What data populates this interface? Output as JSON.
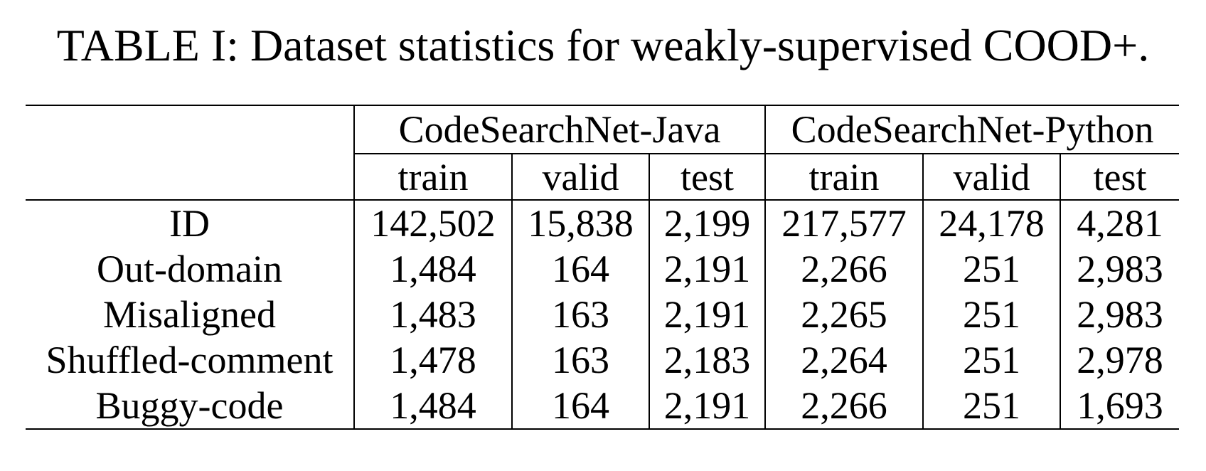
{
  "caption": "TABLE I: Dataset statistics for weakly-supervised COOD+.",
  "table": {
    "groups": [
      "CodeSearchNet-Java",
      "CodeSearchNet-Python"
    ],
    "splits": [
      "train",
      "valid",
      "test",
      "train",
      "valid",
      "test"
    ],
    "rows": [
      {
        "label": "ID",
        "values": [
          "142,502",
          "15,838",
          "2,199",
          "217,577",
          "24,178",
          "4,281"
        ]
      },
      {
        "label": "Out-domain",
        "values": [
          "1,484",
          "164",
          "2,191",
          "2,266",
          "251",
          "2,983"
        ]
      },
      {
        "label": "Misaligned",
        "values": [
          "1,483",
          "163",
          "2,191",
          "2,265",
          "251",
          "2,983"
        ]
      },
      {
        "label": "Shuffled-comment",
        "values": [
          "1,478",
          "163",
          "2,183",
          "2,264",
          "251",
          "2,978"
        ]
      },
      {
        "label": "Buggy-code",
        "values": [
          "1,484",
          "164",
          "2,191",
          "2,266",
          "251",
          "1,693"
        ]
      }
    ]
  }
}
